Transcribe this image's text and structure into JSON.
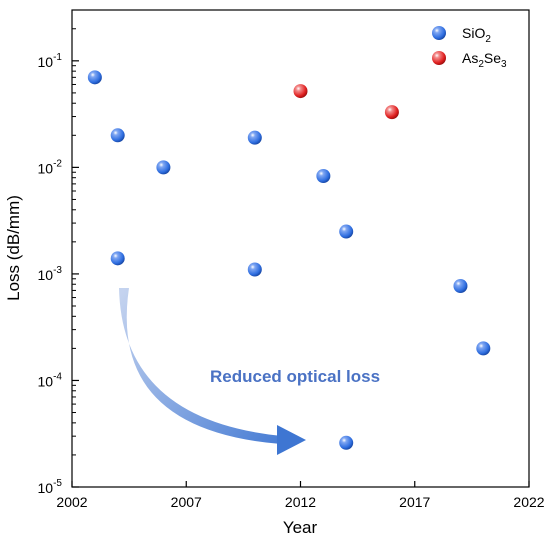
{
  "chart_data": {
    "type": "scatter",
    "xlabel": "Year",
    "ylabel": "Loss (dB/mm)",
    "xlim": [
      2002,
      2022
    ],
    "ylim": [
      1e-05,
      0.3
    ],
    "yscale": "log",
    "x_ticks": [
      "2002",
      "2007",
      "2012",
      "2017",
      "2022"
    ],
    "y_ticks": [
      {
        "base": "10",
        "exp": "-5"
      },
      {
        "base": "10",
        "exp": "-4"
      },
      {
        "base": "10",
        "exp": "-3"
      },
      {
        "base": "10",
        "exp": "-2"
      },
      {
        "base": "10",
        "exp": "-1"
      }
    ],
    "legend_position": "top-right",
    "series": [
      {
        "label": {
          "base": "SiO",
          "sub": "2"
        },
        "color": "#2f6ee0",
        "points": [
          [
            2003,
            0.07
          ],
          [
            2004,
            0.02
          ],
          [
            2004,
            0.0014
          ],
          [
            2006,
            0.01
          ],
          [
            2010,
            0.019
          ],
          [
            2010,
            0.0011
          ],
          [
            2013,
            0.0083
          ],
          [
            2014,
            0.0025
          ],
          [
            2014,
            2.6e-05
          ],
          [
            2019,
            0.00077
          ],
          [
            2020,
            0.0002
          ]
        ]
      },
      {
        "label": {
          "p1": "As",
          "s1": "2",
          "p2": "Se",
          "s2": "3"
        },
        "color": "#e02020",
        "points": [
          [
            2012,
            0.052
          ],
          [
            2016,
            0.033
          ]
        ]
      }
    ],
    "annotation": {
      "text": "Reduced optical loss",
      "arrow": "curved, from high loss toward low loss"
    }
  }
}
